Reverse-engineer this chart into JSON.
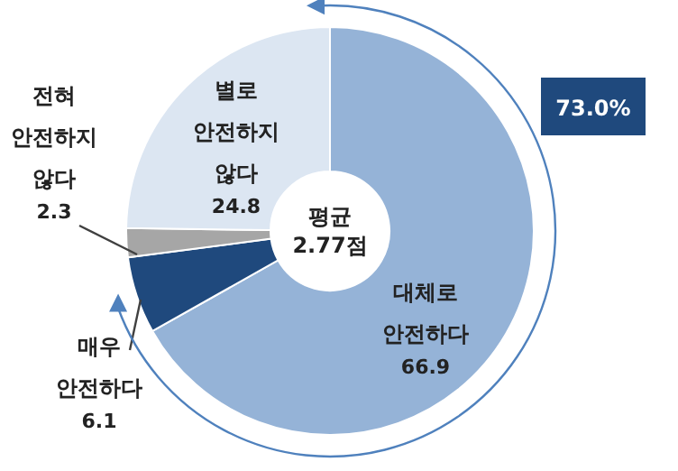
{
  "chart_data": {
    "type": "donut",
    "categories": [
      "대체로 안전하다",
      "매우 안전하다",
      "전혀 안전하지 않다",
      "별로 안전하지 않다"
    ],
    "values": [
      66.9,
      6.1,
      2.3,
      24.8
    ],
    "colors": [
      "#95b3d7",
      "#1f497d",
      "#a6a6a6",
      "#dce6f2"
    ],
    "data_labels": true,
    "annotations": [
      "평균 2.77점",
      "73.0%"
    ]
  }
}
